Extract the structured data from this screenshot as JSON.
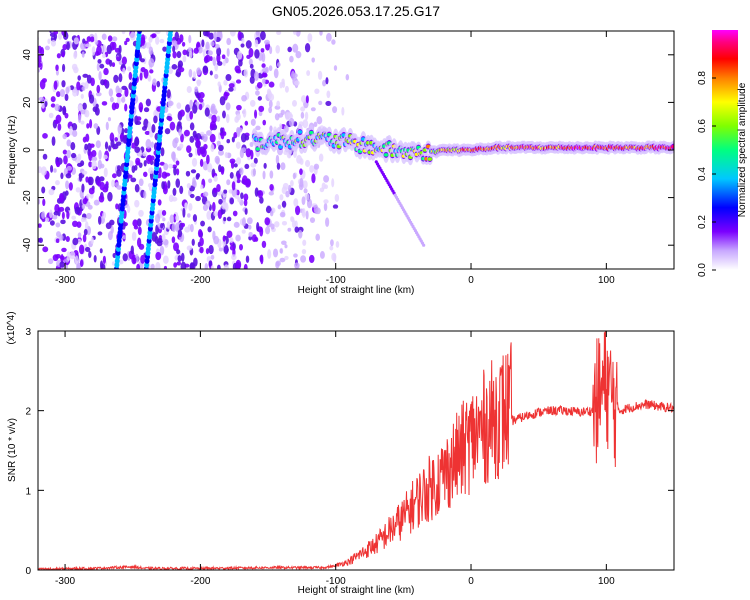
{
  "title": "GN05.2026.053.17.25.G17",
  "chart_data": [
    {
      "type": "heatmap",
      "xlabel": "Height of straight line (km)",
      "ylabel": "Frequency (Hz)",
      "xlim": [
        -320,
        150
      ],
      "ylim": [
        -50,
        50
      ],
      "xticks": [
        -300,
        -200,
        -100,
        0,
        100
      ],
      "yticks": [
        -40,
        -20,
        0,
        20,
        40
      ],
      "colorbar": {
        "label": "Normalized spectral amplitude",
        "range": [
          0.0,
          1.0
        ],
        "ticks": [
          0.0,
          0.2,
          0.4,
          0.6,
          0.8
        ],
        "colormap": [
          "#ffffff",
          "#7b00ff",
          "#0000ff",
          "#00c0ff",
          "#00ff80",
          "#80ff00",
          "#ffff00",
          "#ff8000",
          "#ff0000",
          "#ff0080",
          "#ff00ff"
        ]
      },
      "features": {
        "diagonal_lines": [
          {
            "x_at_bottom": -262,
            "x_at_top": -245
          },
          {
            "x_at_bottom": -240,
            "x_at_top": -222
          }
        ],
        "noise_region_x": [
          -320,
          -100
        ],
        "ridge": {
          "x": [
            -160,
            -140,
            -120,
            -100,
            -80,
            -60,
            -45,
            -30,
            -20,
            0,
            20,
            40,
            60,
            80,
            100,
            120,
            150
          ],
          "freq": [
            3,
            4,
            5,
            4,
            2,
            0,
            -1,
            -1,
            0,
            0,
            1,
            1,
            1,
            1,
            1,
            1,
            1
          ],
          "amplitude": [
            0.35,
            0.4,
            0.45,
            0.45,
            0.5,
            0.5,
            0.55,
            0.6,
            0.65,
            0.75,
            0.7,
            0.8,
            0.75,
            0.95,
            0.85,
            0.8,
            0.9
          ]
        },
        "branch": {
          "x": [
            -70,
            -35
          ],
          "freq": [
            -5,
            -40
          ]
        }
      }
    },
    {
      "type": "line",
      "xlabel": "Height of straight line (km)",
      "ylabel": "SNR (10 * v/v)",
      "scale_label": "(x10^4)",
      "xlim": [
        -320,
        150
      ],
      "ylim": [
        0,
        3
      ],
      "xticks": [
        -300,
        -200,
        -100,
        0,
        100
      ],
      "yticks": [
        0,
        1,
        2,
        3
      ],
      "series": [
        {
          "color": "#ee3333",
          "x": [
            -320,
            -280,
            -250,
            -240,
            -200,
            -150,
            -110,
            -100,
            -90,
            -80,
            -70,
            -60,
            -50,
            -40,
            -30,
            -20,
            -10,
            0,
            10,
            20,
            30,
            40,
            50,
            60,
            70,
            80,
            90,
            95,
            100,
            105,
            110,
            120,
            130,
            140,
            150
          ],
          "y": [
            0.01,
            0.02,
            0.04,
            0.02,
            0.02,
            0.03,
            0.03,
            0.05,
            0.1,
            0.2,
            0.3,
            0.45,
            0.6,
            0.8,
            0.95,
            1.1,
            1.3,
            1.5,
            1.65,
            1.78,
            1.87,
            1.93,
            1.98,
            2.0,
            2.0,
            1.98,
            2.0,
            2.2,
            2.35,
            2.1,
            2.0,
            2.05,
            2.08,
            2.05,
            2.03
          ]
        }
      ]
    }
  ]
}
